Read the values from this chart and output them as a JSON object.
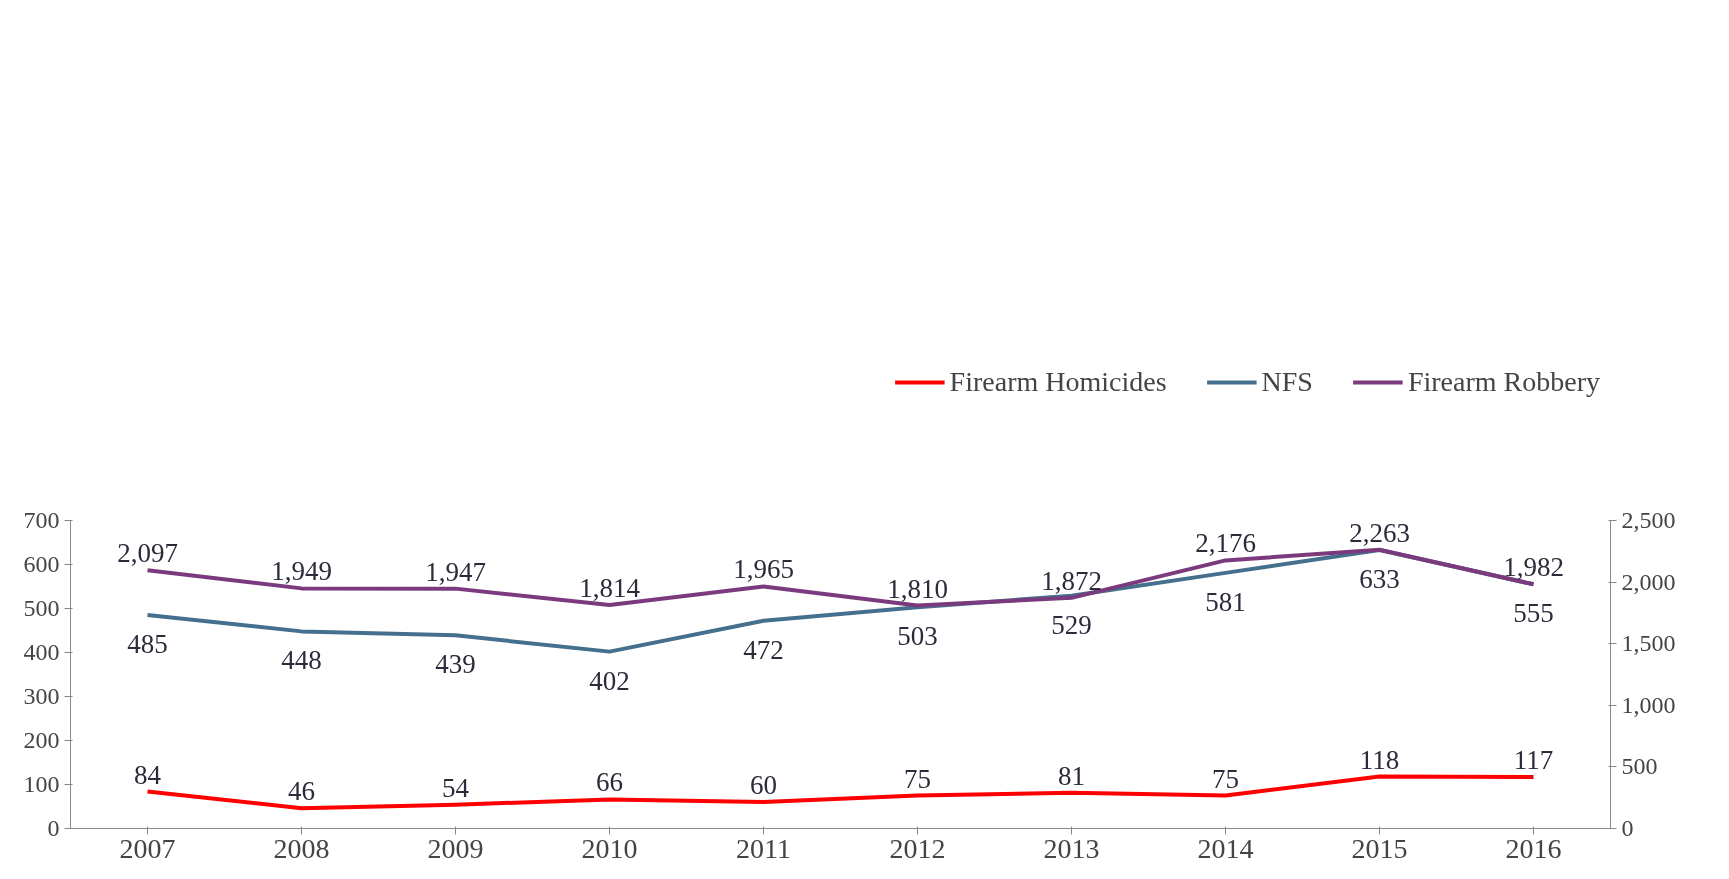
{
  "chart_data": {
    "type": "line",
    "categories": [
      "2007",
      "2008",
      "2009",
      "2010",
      "2011",
      "2012",
      "2013",
      "2014",
      "2015",
      "2016"
    ],
    "series": [
      {
        "name": "Firearm Homicides",
        "color": "#ff0000",
        "values": [
          84,
          46,
          54,
          66,
          60,
          75,
          81,
          75,
          118,
          117
        ],
        "value_labels": [
          "84",
          "46",
          "54",
          "66",
          "60",
          "75",
          "81",
          "75",
          "118",
          "117"
        ]
      },
      {
        "name": "NFS",
        "color": "#44708e",
        "values": [
          485,
          448,
          439,
          402,
          472,
          503,
          529,
          581,
          633,
          555
        ],
        "value_labels": [
          "485",
          "448",
          "439",
          "402",
          "472",
          "503",
          "529",
          "581",
          "633",
          "555"
        ]
      },
      {
        "name": "Firearm Robbery",
        "color": "#7b3a7e",
        "axis": "y2",
        "values": [
          2097,
          1949,
          1947,
          1814,
          1965,
          1810,
          1872,
          2176,
          2263,
          1982
        ],
        "value_labels": [
          "2,097",
          "1,949",
          "1,947",
          "1,814",
          "1,965",
          "1,810",
          "1,872",
          "2,176",
          "2,263",
          "1,982"
        ]
      }
    ],
    "ylim": [
      0,
      700
    ],
    "yticks": [
      0,
      100,
      200,
      300,
      400,
      500,
      600,
      700
    ],
    "y2lim": [
      0,
      2500
    ],
    "y2ticks": [
      0,
      {
        "value": 500,
        "label": "500"
      },
      {
        "value": 1000,
        "label": "1,000"
      },
      {
        "value": 1500,
        "label": "1,500"
      },
      {
        "value": 2000,
        "label": "2,000"
      },
      {
        "value": 2500,
        "label": "2,500"
      }
    ],
    "legend": "top right",
    "grid": false,
    "marker": "none",
    "line_style": "solid"
  }
}
